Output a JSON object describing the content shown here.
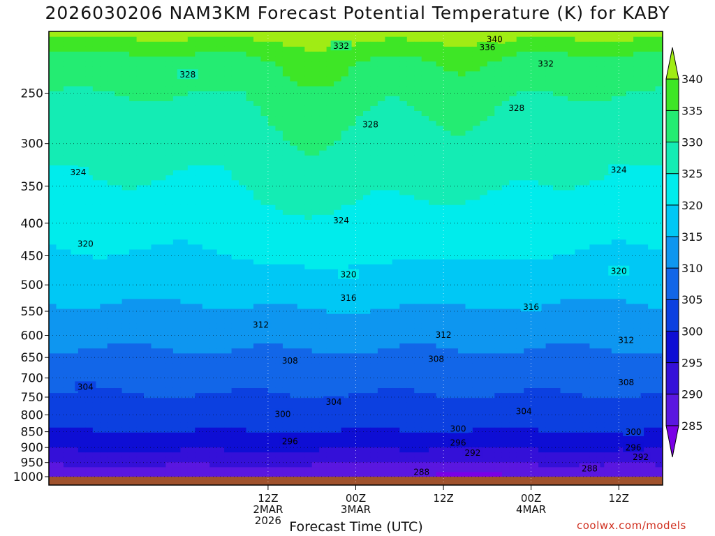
{
  "chart_data": {
    "type": "heatmap",
    "title": "2026030206 NAM3KM Forecast Potential Temperature (K) for KABY",
    "xlabel": "Forecast Time (UTC)",
    "ylabel": "",
    "credit": "coolwx.com/models",
    "x_range_hours": [
      -18,
      66
    ],
    "y_range_hpa": [
      1000,
      200
    ],
    "y_scale": "log-pressure",
    "y_ticks": [
      250,
      300,
      350,
      400,
      450,
      500,
      550,
      600,
      650,
      700,
      750,
      800,
      850,
      900,
      950,
      1000
    ],
    "x_ticks": [
      {
        "hour": 12,
        "lines": [
          "12Z",
          "2MAR",
          "2026"
        ]
      },
      {
        "hour": 24,
        "lines": [
          "00Z",
          "3MAR"
        ]
      },
      {
        "hour": 36,
        "lines": [
          "12Z"
        ]
      },
      {
        "hour": 48,
        "lines": [
          "00Z",
          "4MAR"
        ]
      },
      {
        "hour": 60,
        "lines": [
          "12Z"
        ]
      }
    ],
    "grid": true,
    "colorbar": {
      "levels": [
        285,
        290,
        295,
        300,
        305,
        310,
        315,
        320,
        325,
        330,
        335,
        340
      ],
      "labels": [
        "285",
        "290",
        "295",
        "300",
        "305",
        "310",
        "315",
        "320",
        "325",
        "330",
        "335",
        "340"
      ],
      "colors": [
        "#7a00e6",
        "#5a17e0",
        "#3410d8",
        "#0e0ed4",
        "#0c40e0",
        "#1266e8",
        "#0e96f0",
        "#00c8f5",
        "#00ecec",
        "#14ecb4",
        "#24ec72",
        "#3ee626",
        "#a0ec14"
      ]
    },
    "contour_labels": [
      {
        "value": "340",
        "hour": 43,
        "hpa": 206
      },
      {
        "value": "336",
        "hour": 42,
        "hpa": 212
      },
      {
        "value": "332",
        "hour": 22,
        "hpa": 211
      },
      {
        "value": "332",
        "hour": 50,
        "hpa": 225
      },
      {
        "value": "328",
        "hour": 1,
        "hpa": 234
      },
      {
        "value": "328",
        "hour": 26,
        "hpa": 280
      },
      {
        "value": "328",
        "hour": 46,
        "hpa": 264
      },
      {
        "value": "324",
        "hour": -14,
        "hpa": 333
      },
      {
        "value": "324",
        "hour": 22,
        "hpa": 396
      },
      {
        "value": "324",
        "hour": 60,
        "hpa": 330
      },
      {
        "value": "320",
        "hour": -13,
        "hpa": 431
      },
      {
        "value": "320",
        "hour": 23,
        "hpa": 482
      },
      {
        "value": "320",
        "hour": 60,
        "hpa": 476
      },
      {
        "value": "316",
        "hour": 23,
        "hpa": 524
      },
      {
        "value": "316",
        "hour": 48,
        "hpa": 542
      },
      {
        "value": "312",
        "hour": 11,
        "hpa": 578
      },
      {
        "value": "312",
        "hour": 36,
        "hpa": 599
      },
      {
        "value": "312",
        "hour": 61,
        "hpa": 611
      },
      {
        "value": "308",
        "hour": 15,
        "hpa": 658
      },
      {
        "value": "308",
        "hour": 35,
        "hpa": 654
      },
      {
        "value": "308",
        "hour": 61,
        "hpa": 711
      },
      {
        "value": "304",
        "hour": -13,
        "hpa": 723
      },
      {
        "value": "304",
        "hour": 21,
        "hpa": 763
      },
      {
        "value": "304",
        "hour": 47,
        "hpa": 790
      },
      {
        "value": "300",
        "hour": 14,
        "hpa": 798
      },
      {
        "value": "300",
        "hour": 38,
        "hpa": 841
      },
      {
        "value": "300",
        "hour": 62,
        "hpa": 851
      },
      {
        "value": "296",
        "hour": 15,
        "hpa": 880
      },
      {
        "value": "296",
        "hour": 38,
        "hpa": 885
      },
      {
        "value": "296",
        "hour": 62,
        "hpa": 901
      },
      {
        "value": "292",
        "hour": 40,
        "hpa": 918
      },
      {
        "value": "292",
        "hour": 63,
        "hpa": 932
      },
      {
        "value": "288",
        "hour": 33,
        "hpa": 984
      },
      {
        "value": "288",
        "hour": 56,
        "hpa": 972
      }
    ]
  }
}
